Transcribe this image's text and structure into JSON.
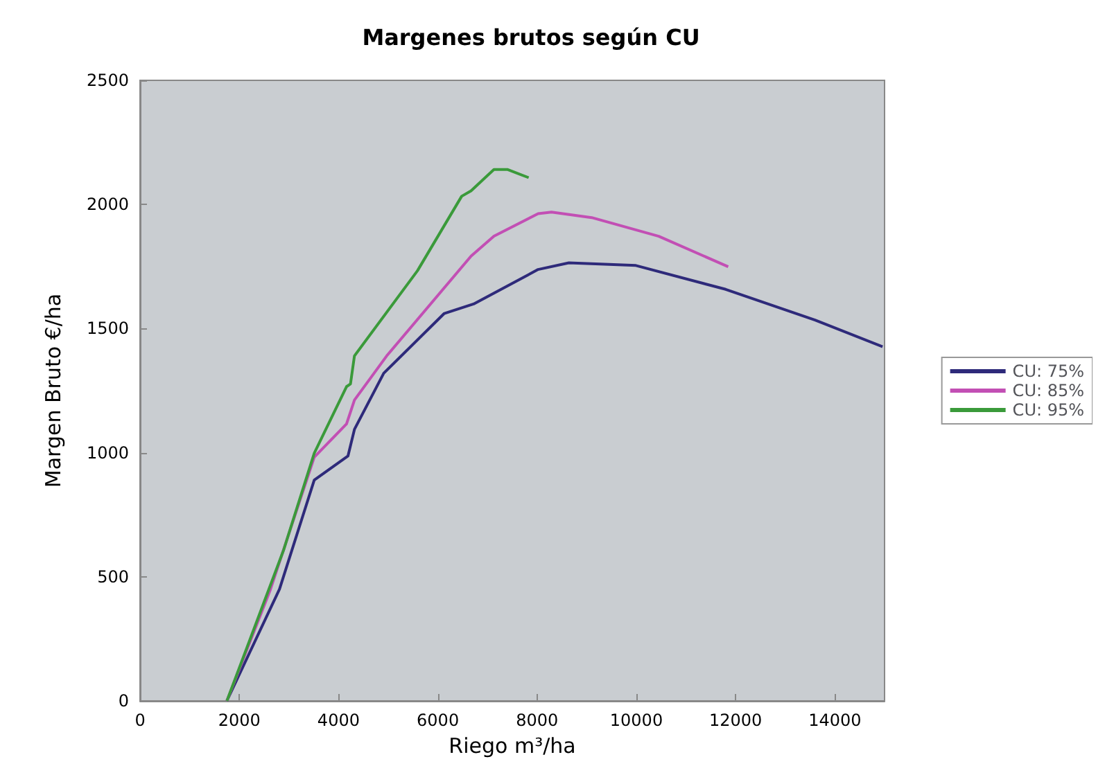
{
  "chart_data": {
    "type": "line",
    "title": "Margenes brutos según CU",
    "xlabel": "Riego m³/ha",
    "ylabel": "Margen Bruto €/ha",
    "xlim": [
      0,
      15000
    ],
    "xticks": [
      0,
      2000,
      4000,
      6000,
      8000,
      10000,
      12000,
      14000
    ],
    "ylim": [
      0,
      2500
    ],
    "yticks": [
      0,
      500,
      1000,
      1500,
      2000,
      2500
    ],
    "grid": false,
    "legend": "right",
    "marker": "none",
    "line_style": "solid",
    "series": [
      {
        "name": "CU: 75%",
        "color": "#2e2a7a",
        "x": [
          1750,
          2810,
          3510,
          4190,
          4320,
          4910,
          6130,
          6720,
          8020,
          8640,
          9990,
          11800,
          13600,
          14960
        ],
        "values": [
          0,
          450,
          890,
          987,
          1094,
          1320,
          1561,
          1599,
          1738,
          1765,
          1754,
          1658,
          1534,
          1427
        ]
      },
      {
        "name": "CU: 85%",
        "color": "#c24fb4",
        "x": [
          1750,
          2620,
          3510,
          4160,
          4320,
          4970,
          6670,
          7130,
          8020,
          8290,
          9100,
          10450,
          11850
        ],
        "values": [
          0,
          445,
          982,
          1116,
          1212,
          1390,
          1792,
          1872,
          1963,
          1969,
          1947,
          1872,
          1749
        ]
      },
      {
        "name": "CU: 95%",
        "color": "#3a9a3a",
        "x": [
          1750,
          2890,
          3510,
          4160,
          4240,
          4320,
          5590,
          6480,
          6670,
          7130,
          7400,
          7830
        ],
        "values": [
          0,
          606,
          998,
          1266,
          1277,
          1390,
          1733,
          2033,
          2055,
          2141,
          2141,
          2108
        ]
      }
    ]
  }
}
